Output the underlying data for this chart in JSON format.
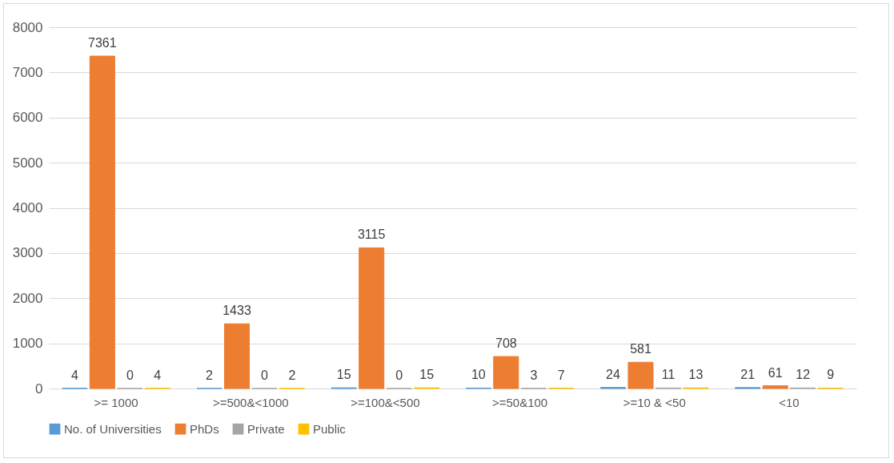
{
  "chart_data": {
    "type": "bar",
    "categories": [
      ">= 1000",
      ">=500&<1000",
      ">=100&<500",
      ">=50&100",
      ">=10 & <50",
      "<10"
    ],
    "series": [
      {
        "name": "No. of Universities",
        "color": "#5b9bd5",
        "values": [
          4,
          2,
          15,
          10,
          24,
          21
        ]
      },
      {
        "name": "PhDs",
        "color": "#ed7d31",
        "values": [
          7361,
          1433,
          3115,
          708,
          581,
          61
        ]
      },
      {
        "name": "Private",
        "color": "#a5a5a5",
        "values": [
          0,
          0,
          0,
          3,
          11,
          12
        ]
      },
      {
        "name": "Public",
        "color": "#ffc000",
        "values": [
          4,
          2,
          15,
          7,
          13,
          9
        ]
      }
    ],
    "ylim": [
      0,
      8000
    ],
    "yticks": [
      0,
      1000,
      2000,
      3000,
      4000,
      5000,
      6000,
      7000,
      8000
    ],
    "grid": "y",
    "legend": "bottom",
    "data_labels": true
  }
}
